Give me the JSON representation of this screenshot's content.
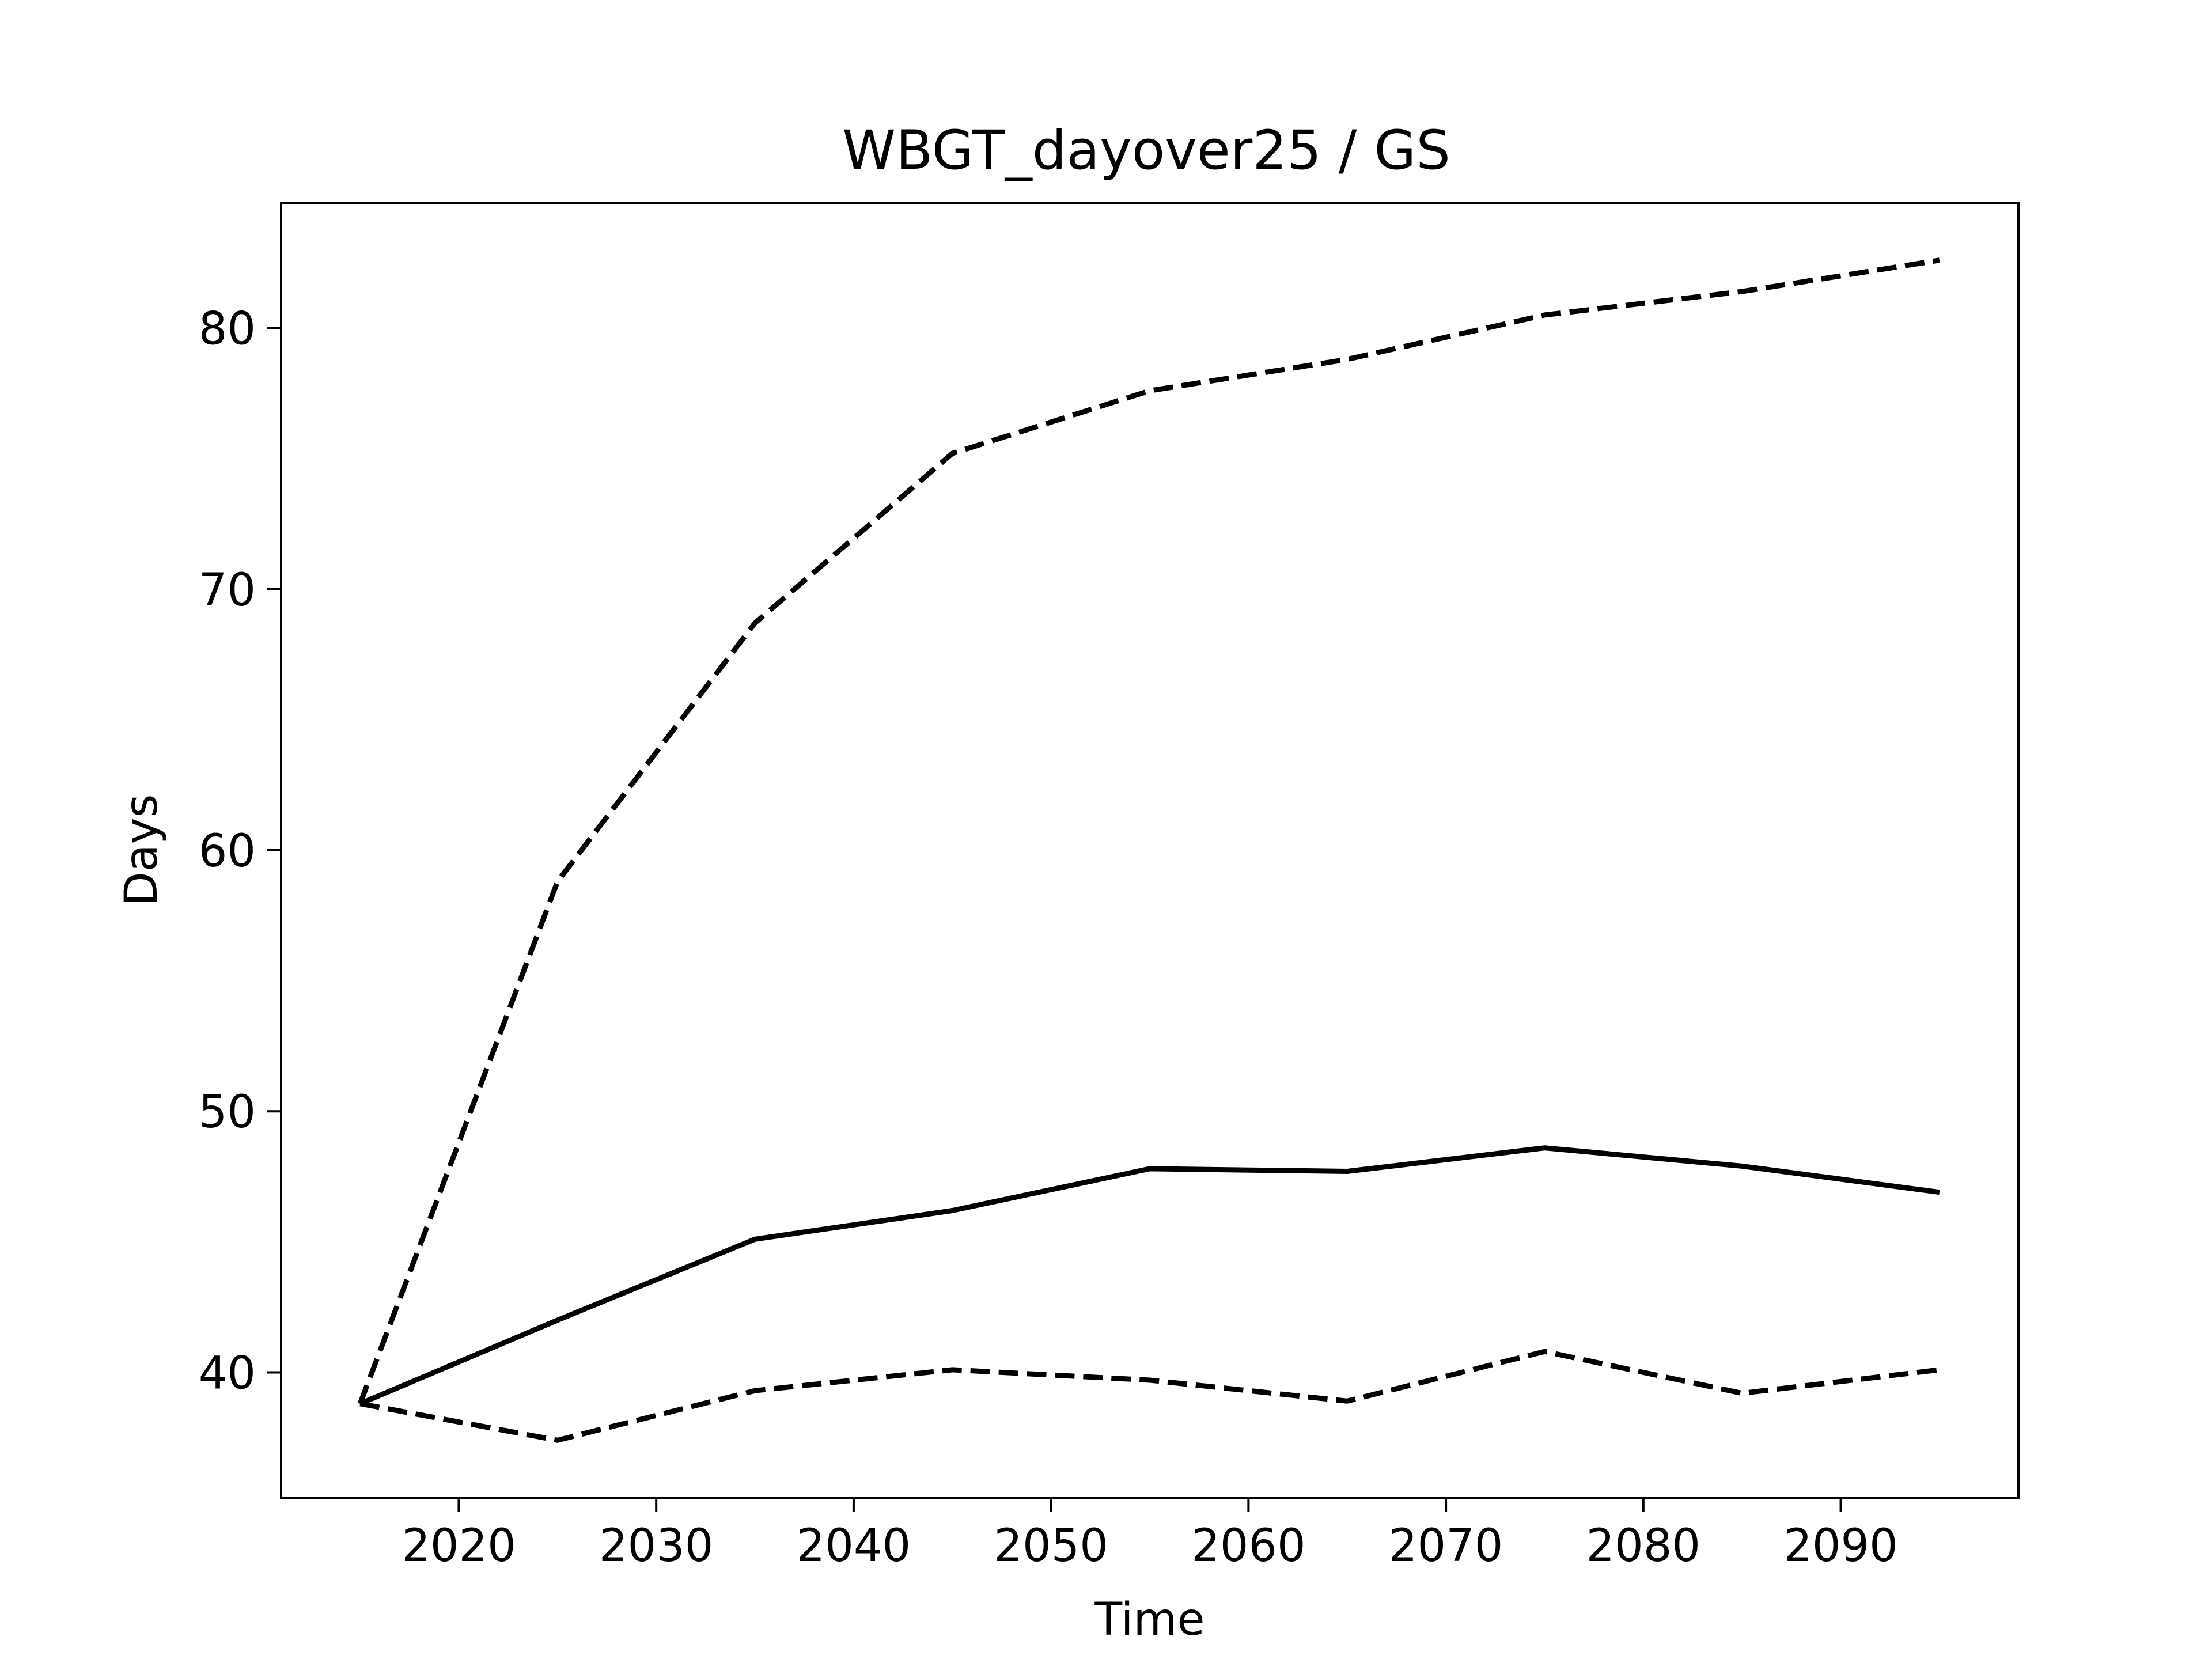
{
  "chart_data": {
    "type": "line",
    "title": "WBGT_dayover25 / GS",
    "xlabel": "Time",
    "ylabel": "Days",
    "xlim": [
      2011,
      2099
    ],
    "ylim": [
      35.2,
      84.8
    ],
    "x_ticks": [
      2020,
      2030,
      2040,
      2050,
      2060,
      2070,
      2080,
      2090
    ],
    "y_ticks": [
      40,
      50,
      60,
      70,
      80
    ],
    "grid": false,
    "legend": "none",
    "x": [
      2015,
      2025,
      2035,
      2045,
      2055,
      2065,
      2075,
      2085,
      2095
    ],
    "series": [
      {
        "style": "dashed",
        "color": "#000000",
        "values": [
          38.8,
          58.8,
          68.7,
          75.2,
          77.6,
          78.8,
          80.5,
          81.4,
          82.6
        ]
      },
      {
        "style": "solid",
        "color": "#000000",
        "values": [
          38.8,
          42.0,
          45.1,
          46.2,
          47.8,
          47.7,
          48.6,
          47.9,
          46.9
        ]
      },
      {
        "style": "dashed",
        "color": "#000000",
        "values": [
          38.8,
          37.4,
          39.3,
          40.1,
          39.7,
          38.9,
          40.8,
          39.2,
          40.1
        ]
      }
    ]
  }
}
